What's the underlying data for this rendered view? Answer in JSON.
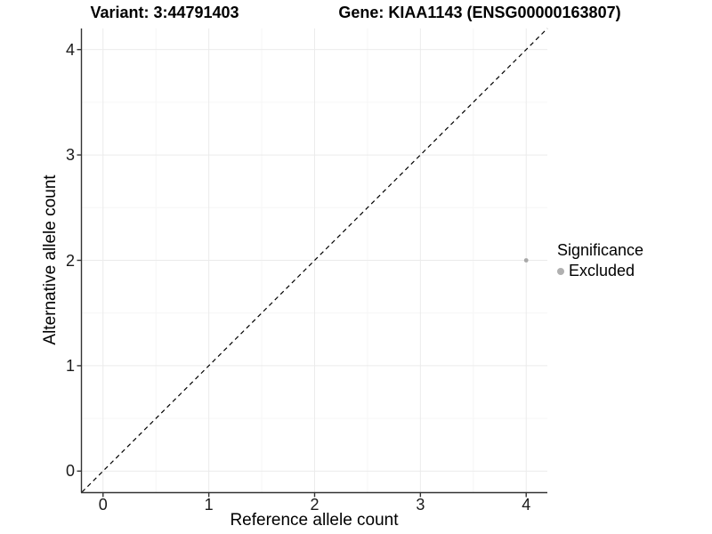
{
  "header": {
    "variant_title": "Variant: 3:44791403",
    "gene_title": "Gene: KIAA1143 (ENSG00000163807)"
  },
  "legend": {
    "title": "Significance",
    "items": [
      {
        "label": "Excluded",
        "marker": "circle-icon",
        "color": "#b0b0b0"
      }
    ]
  },
  "chart_data": {
    "type": "scatter",
    "xlabel": "Reference allele count",
    "ylabel": "Alternative allele count",
    "xlim": [
      -0.2,
      4.2
    ],
    "ylim": [
      -0.2,
      4.2
    ],
    "x_ticks": [
      "0",
      "1",
      "2",
      "3",
      "4"
    ],
    "x_tick_values": [
      0,
      1,
      2,
      3,
      4
    ],
    "y_ticks": [
      "0",
      "1",
      "2",
      "3",
      "4"
    ],
    "y_tick_values": [
      0,
      1,
      2,
      3,
      4
    ],
    "minor_tick_values": [
      0.5,
      1.5,
      2.5,
      3.5
    ],
    "grid": true,
    "legend_position": "right",
    "series": [
      {
        "name": "Excluded",
        "color": "#a8a8a8",
        "points": [
          {
            "x": 4,
            "y": 2
          }
        ],
        "point_radius": 2.4
      }
    ],
    "reference_line": {
      "type": "identity",
      "from": [
        -0.2,
        -0.2
      ],
      "to": [
        4.2,
        4.2
      ],
      "style": "dashed",
      "color": "#000000"
    },
    "colors": {
      "panel_background": "#ffffff",
      "grid_major": "#ebebeb",
      "grid_minor": "#f6f6f6",
      "axis_line": "#333333",
      "tick_mark": "#333333",
      "text": "#000000"
    }
  }
}
